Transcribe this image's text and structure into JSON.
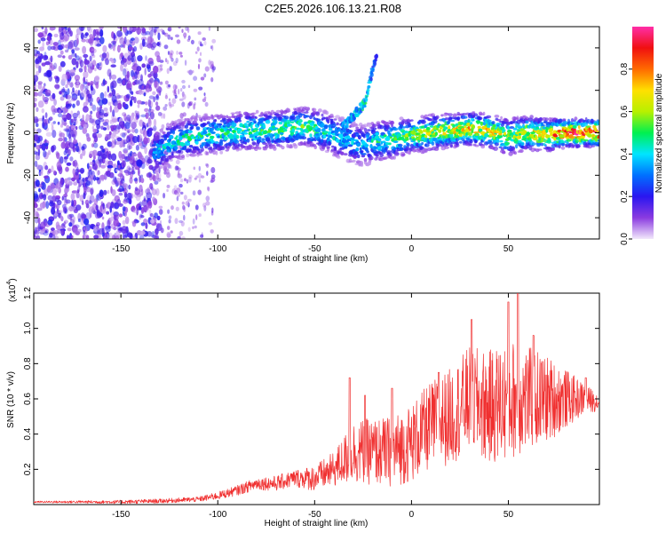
{
  "figure_title": "C2E5.2026.106.13.21.R08",
  "chart_data": [
    {
      "id": "spectrogram",
      "type": "heatmap",
      "title": "C2E5.2026.106.13.21.R08",
      "xlabel": "Height of straight line (km)",
      "ylabel": "Frequency (Hz)",
      "xlim": [
        -195,
        97
      ],
      "ylim": [
        -50,
        50
      ],
      "x_ticks": [
        -150,
        -100,
        -50,
        0,
        50
      ],
      "y_ticks": [
        -40,
        -20,
        0,
        20,
        40
      ],
      "x_tick_labels": [
        "-150",
        "-100",
        "-50",
        "0",
        "50"
      ],
      "y_tick_labels": [
        "-40",
        "-20",
        "0",
        "20",
        "40"
      ],
      "colorbar": {
        "label": "Normalized spectral amplitude",
        "range": [
          0,
          1
        ],
        "ticks": [
          0.0,
          0.2,
          0.4,
          0.6,
          0.8
        ],
        "tick_labels": [
          "0.0",
          "0.2",
          "0.4",
          "0.6",
          "0.8"
        ],
        "colors": [
          "#f2e8fb",
          "#8a3be0",
          "#2a16f0",
          "#0070ff",
          "#00e5ff",
          "#00f050",
          "#b8f000",
          "#ffe000",
          "#ff6a00",
          "#f01010",
          "#ff2ea8"
        ]
      },
      "ridge": {
        "x": [
          -133,
          -125,
          -115,
          -105,
          -95,
          -85,
          -75,
          -65,
          -55,
          -45,
          -38,
          -32,
          -25,
          -18,
          -10,
          0,
          10,
          20,
          30,
          40,
          50,
          60,
          70,
          80,
          90,
          97
        ],
        "y": [
          -10,
          -5,
          -2,
          -1,
          0,
          1,
          1,
          2,
          3,
          1,
          -2,
          -4,
          -6,
          -4,
          -3,
          -1,
          0,
          1,
          2,
          1,
          -2,
          0,
          -1,
          0,
          0,
          0
        ],
        "amplitude": [
          0.35,
          0.4,
          0.45,
          0.45,
          0.45,
          0.5,
          0.5,
          0.5,
          0.5,
          0.45,
          0.4,
          0.35,
          0.35,
          0.45,
          0.5,
          0.55,
          0.6,
          0.65,
          0.7,
          0.65,
          0.6,
          0.65,
          0.75,
          0.85,
          0.9,
          0.9
        ]
      },
      "branch": {
        "x": [
          -36,
          -32,
          -28,
          -24,
          -22,
          -20,
          -18
        ],
        "y": [
          2,
          6,
          10,
          14,
          22,
          30,
          36
        ],
        "amplitude": [
          0.3,
          0.35,
          0.4,
          0.45,
          0.4,
          0.3,
          0.25
        ]
      },
      "noise_region": {
        "x_range": [
          -195,
          -130
        ],
        "amplitude": 0.15
      }
    },
    {
      "id": "snr",
      "type": "line",
      "xlabel": "Height of straight line (km)",
      "ylabel": "SNR (10 * v/v)",
      "y_multiplier": "(x10",
      "y_multiplier_exponent": "4",
      "y_multiplier_close": ")",
      "xlim": [
        -195,
        97
      ],
      "ylim": [
        0,
        1.2
      ],
      "x_ticks": [
        -150,
        -100,
        -50,
        0,
        50
      ],
      "y_ticks": [
        0.2,
        0.4,
        0.6,
        0.8,
        1.0,
        1.2
      ],
      "x_tick_labels": [
        "-150",
        "-100",
        "-50",
        "0",
        "50"
      ],
      "y_tick_labels": [
        "0.2",
        "0.4",
        "0.6",
        "0.8",
        "1.0",
        "1.2"
      ],
      "color": "#f03030",
      "envelope": {
        "x": [
          -195,
          -150,
          -130,
          -110,
          -100,
          -90,
          -80,
          -70,
          -60,
          -50,
          -40,
          -30,
          -20,
          -10,
          0,
          10,
          20,
          30,
          40,
          50,
          60,
          70,
          80,
          90,
          97
        ],
        "y": [
          0.015,
          0.015,
          0.02,
          0.03,
          0.05,
          0.08,
          0.12,
          0.12,
          0.15,
          0.15,
          0.2,
          0.3,
          0.3,
          0.3,
          0.35,
          0.45,
          0.5,
          0.6,
          0.55,
          0.6,
          0.6,
          0.6,
          0.6,
          0.6,
          0.58
        ]
      },
      "spread": {
        "x": [
          -195,
          -110,
          -60,
          -40,
          -30,
          -10,
          10,
          30,
          50,
          70,
          90,
          97
        ],
        "y": [
          0.005,
          0.015,
          0.05,
          0.1,
          0.18,
          0.2,
          0.25,
          0.3,
          0.35,
          0.25,
          0.08,
          0.05
        ]
      },
      "peaks": [
        {
          "x": -32,
          "y": 0.72
        },
        {
          "x": -24,
          "y": 0.62
        },
        {
          "x": -10,
          "y": 0.66
        },
        {
          "x": 14,
          "y": 0.75
        },
        {
          "x": 31,
          "y": 1.05
        },
        {
          "x": 50,
          "y": 1.15
        },
        {
          "x": 55,
          "y": 1.25
        },
        {
          "x": 63,
          "y": 0.96
        },
        {
          "x": 90,
          "y": 0.72
        }
      ]
    }
  ]
}
